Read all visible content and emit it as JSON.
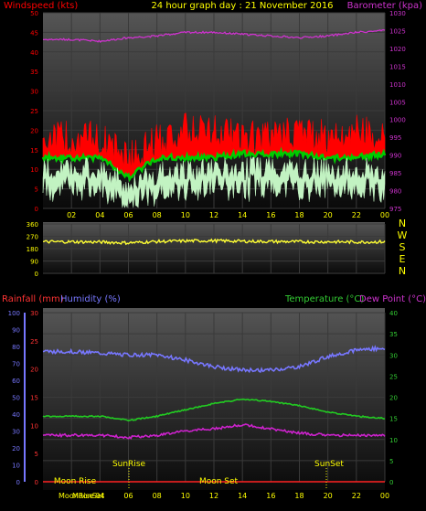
{
  "header": {
    "left_title": "Windspeed (kts)",
    "center_title": "24 hour graph day : 21 November 2016",
    "right_title": "Barometer (kpa)"
  },
  "bottom_header": {
    "rainfall": "Rainfall (mm)",
    "humidity": "Humidity (%)",
    "temperature": "Temperature (°C)",
    "dewpoint": "Dew Point (°C)"
  },
  "annotations": {
    "sunrise": "SunRise",
    "sunset": "SunSet",
    "moonrise": "Moon Rise",
    "moonset": "Moon Set",
    "moonrise_bottom": "MoonRise",
    "moonset_bottom": "MoonSet"
  },
  "colors": {
    "wind_gust": "#ff0000",
    "wind_avg": "#00cc00",
    "wind_speed": "#ccffcc",
    "barometer": "#cc33cc",
    "direction": "#ffff33",
    "humidity": "#7777ff",
    "temperature": "#22cc22",
    "dewpoint": "#cc22cc",
    "rainfall": "#ff2222",
    "compass_text": "#ffff00",
    "temp_axis": "#33cc33",
    "hum_axis": "#7777ff",
    "rain_axis": "#ff3333",
    "wind_axis": "#ff0000",
    "baro_axis": "#cc33cc"
  },
  "x_ticks": [
    "02",
    "04",
    "06",
    "08",
    "10",
    "12",
    "14",
    "16",
    "18",
    "20",
    "22",
    "00"
  ],
  "compass": [
    "N",
    "W",
    "S",
    "E",
    "N"
  ],
  "chart_data": [
    {
      "type": "line",
      "title": "24 hour graph day : 21 November 2016",
      "ylabel": "Windspeed (kts)",
      "y2label": "Barometer (kpa)",
      "ylim": [
        0,
        50
      ],
      "y_ticks": [
        "0",
        "5",
        "10",
        "15",
        "20",
        "25",
        "30",
        "35",
        "40",
        "45",
        "50"
      ],
      "y2lim": [
        975,
        1030
      ],
      "y2_ticks": [
        "975",
        "980",
        "985",
        "990",
        "995",
        "1000",
        "1005",
        "1010",
        "1015",
        "1020",
        "1025",
        "1030"
      ],
      "x": [
        "02",
        "04",
        "06",
        "08",
        "10",
        "12",
        "14",
        "16",
        "18",
        "20",
        "22",
        "00"
      ],
      "series": [
        {
          "name": "Windspeed (kts)",
          "values": [
            18,
            18,
            13,
            17,
            20,
            20,
            18,
            18,
            20,
            18,
            20,
            19
          ]
        },
        {
          "values": [
            13,
            13,
            8,
            13,
            13,
            13,
            14,
            14,
            14,
            13,
            13,
            14
          ]
        },
        {
          "values": [
            10,
            10,
            6,
            9,
            10,
            10,
            10,
            11,
            10,
            10,
            10,
            10
          ]
        },
        {
          "name": "Barometer (kpa)",
          "axis": "right",
          "values": [
            1022.5,
            1022.0,
            1023.0,
            1023.5,
            1024.5,
            1024.5,
            1024.0,
            1023.5,
            1023.0,
            1023.5,
            1024.5,
            1025.0
          ]
        }
      ]
    },
    {
      "type": "line",
      "ylim": [
        0,
        360
      ],
      "y_ticks": [
        "0",
        "90",
        "180",
        "270",
        "360"
      ],
      "x": [
        "02",
        "04",
        "06",
        "08",
        "10",
        "12",
        "14",
        "16",
        "18",
        "20",
        "22",
        "00"
      ],
      "series": [
        {
          "values": [
            230,
            228,
            222,
            232,
            236,
            238,
            234,
            232,
            230,
            230,
            228,
            230
          ]
        }
      ]
    },
    {
      "type": "line",
      "x": [
        "02",
        "04",
        "06",
        "08",
        "10",
        "12",
        "14",
        "16",
        "18",
        "20",
        "22",
        "00"
      ],
      "ylim_temperature": [
        0,
        40
      ],
      "temp_ticks": [
        "0",
        "5",
        "10",
        "15",
        "20",
        "25",
        "30",
        "35",
        "40"
      ],
      "ylim_humidity": [
        0,
        100
      ],
      "hum_ticks": [
        "0",
        "10",
        "20",
        "30",
        "40",
        "50",
        "60",
        "70",
        "80",
        "90",
        "100"
      ],
      "ylim_rainfall": [
        0,
        30
      ],
      "rain_ticks": [
        "0",
        "5",
        "10",
        "15",
        "20",
        "25",
        "30"
      ],
      "series": [
        {
          "name": "Humidity (%)",
          "axis": "humidity",
          "values": [
            77,
            76,
            75,
            75,
            72,
            68,
            66,
            66,
            68,
            74,
            78,
            79
          ]
        },
        {
          "name": "Temperature (°C)",
          "axis": "temperature",
          "values": [
            15.5,
            15.5,
            14.5,
            15.5,
            17,
            18.5,
            19.5,
            19,
            18,
            16.5,
            15.5,
            15
          ]
        },
        {
          "name": "Dew Point (°C)",
          "axis": "temperature",
          "values": [
            11,
            11,
            10.5,
            11,
            12,
            12.5,
            13.5,
            12.5,
            11.5,
            11,
            11,
            11
          ]
        },
        {
          "name": "Rainfall (mm)",
          "axis": "rainfall",
          "values": [
            0,
            0,
            0,
            0,
            0,
            0,
            0,
            0,
            0,
            0,
            0,
            0
          ]
        }
      ]
    }
  ]
}
